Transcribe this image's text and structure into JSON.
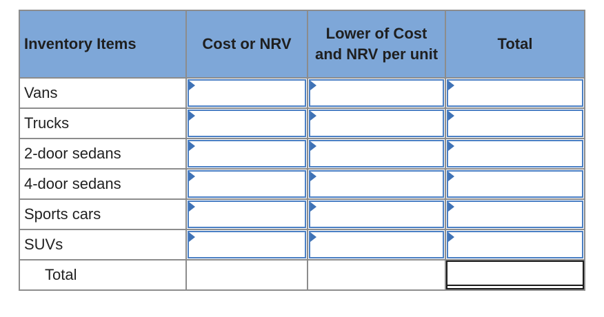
{
  "table": {
    "headers": {
      "item": "Inventory Items",
      "cost_nrv": "Cost or NRV",
      "lower_of": "Lower of Cost and NRV per unit",
      "total": "Total"
    },
    "rows": [
      {
        "label": "Vans"
      },
      {
        "label": "Trucks"
      },
      {
        "label": "2-door sedans"
      },
      {
        "label": "4-door sedans"
      },
      {
        "label": "Sports cars"
      },
      {
        "label": "SUVs"
      }
    ],
    "total_row": {
      "label": "Total"
    }
  },
  "colors": {
    "header_bg": "#7ea7d8",
    "input_border": "#4a7fc4",
    "grid": "#8c8c8c"
  }
}
